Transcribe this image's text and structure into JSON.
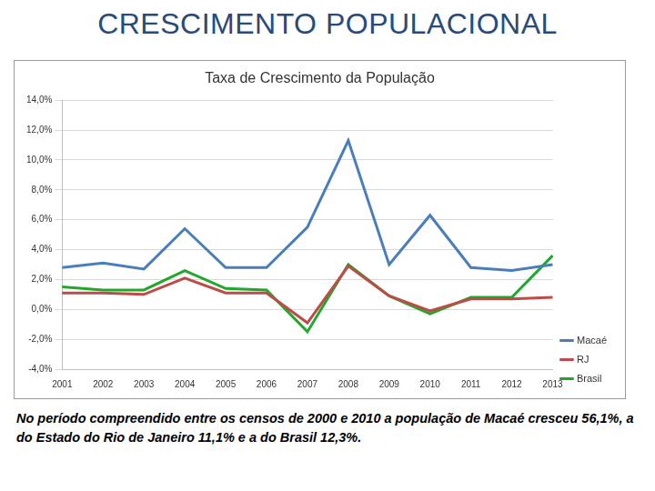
{
  "slide_title": "CRESCIMENTO POPULACIONAL",
  "caption": "No período compreendido entre os censos de 2000 e 2010 a população de Macaé cresceu 56,1%, a do Estado do Rio de Janeiro 11,1% e a do Brasil 12,3%.",
  "chart_data": {
    "type": "line",
    "title": "Taxa de Crescimento da População",
    "categories": [
      "2001",
      "2002",
      "2003",
      "2004",
      "2005",
      "2006",
      "2007",
      "2008",
      "2009",
      "2010",
      "2011",
      "2012",
      "2013"
    ],
    "series": [
      {
        "name": "Macaé",
        "color": "#4a7ebb",
        "marker": "none",
        "values": [
          2.8,
          3.1,
          2.7,
          5.4,
          2.8,
          2.8,
          5.5,
          11.3,
          3.0,
          6.3,
          2.8,
          2.6,
          3.0
        ]
      },
      {
        "name": "RJ",
        "color": "#be4b48",
        "marker": "none",
        "values": [
          1.1,
          1.1,
          1.0,
          2.1,
          1.1,
          1.1,
          -0.9,
          2.9,
          0.9,
          -0.1,
          0.7,
          0.7,
          0.8
        ]
      },
      {
        "name": "Brasil",
        "color": "#1fa82c",
        "marker": "none",
        "values": [
          1.5,
          1.3,
          1.3,
          2.6,
          1.4,
          1.3,
          -1.5,
          3.0,
          0.9,
          -0.3,
          0.8,
          0.8,
          3.6
        ]
      }
    ],
    "ylim": [
      -4,
      14
    ],
    "yticks": [
      {
        "value": -4,
        "label": "-4,0%"
      },
      {
        "value": -2,
        "label": "-2,0%"
      },
      {
        "value": 0,
        "label": "0,0%"
      },
      {
        "value": 2,
        "label": "2,0%"
      },
      {
        "value": 4,
        "label": "4,0%"
      },
      {
        "value": 6,
        "label": "6,0%"
      },
      {
        "value": 8,
        "label": "8,0%"
      },
      {
        "value": 10,
        "label": "10,0%"
      },
      {
        "value": 12,
        "label": "12,0%"
      },
      {
        "value": 14,
        "label": "14,0%"
      }
    ],
    "grid": true,
    "legend": "lower right"
  }
}
